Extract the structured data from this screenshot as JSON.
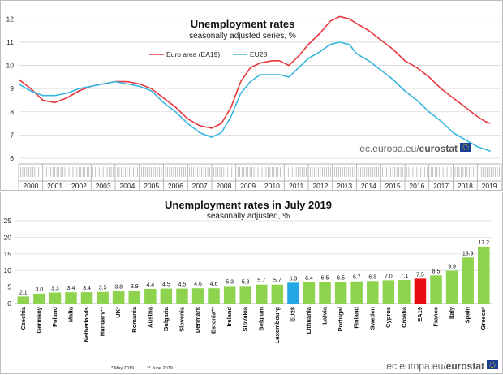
{
  "chart_data": [
    {
      "type": "line",
      "title": "Unemployment rates",
      "subtitle": "seasonally adjusted series, %",
      "x_categories": [
        "2000",
        "2001",
        "2002",
        "2003",
        "2004",
        "2005",
        "2006",
        "2007",
        "2008",
        "2009",
        "2010",
        "2011",
        "2012",
        "2013",
        "2014",
        "2015",
        "2016",
        "2017",
        "2018",
        "2019"
      ],
      "ylim": [
        6,
        12.5
      ],
      "yticks": [
        6,
        7,
        8,
        9,
        10,
        11,
        12
      ],
      "legend_position": "top-center",
      "series": [
        {
          "name": "Euro area (EA19)",
          "color": "#e8353b",
          "points": [
            [
              2000.0,
              9.4
            ],
            [
              2000.5,
              9.0
            ],
            [
              2001.0,
              8.5
            ],
            [
              2001.5,
              8.4
            ],
            [
              2002.0,
              8.6
            ],
            [
              2002.5,
              8.9
            ],
            [
              2003.0,
              9.1
            ],
            [
              2003.5,
              9.2
            ],
            [
              2004.0,
              9.3
            ],
            [
              2004.5,
              9.3
            ],
            [
              2005.0,
              9.2
            ],
            [
              2005.5,
              9.0
            ],
            [
              2006.0,
              8.6
            ],
            [
              2006.5,
              8.2
            ],
            [
              2007.0,
              7.7
            ],
            [
              2007.5,
              7.4
            ],
            [
              2008.0,
              7.3
            ],
            [
              2008.4,
              7.5
            ],
            [
              2008.8,
              8.2
            ],
            [
              2009.2,
              9.3
            ],
            [
              2009.6,
              9.9
            ],
            [
              2010.0,
              10.1
            ],
            [
              2010.5,
              10.2
            ],
            [
              2010.8,
              10.2
            ],
            [
              2011.2,
              10.0
            ],
            [
              2011.6,
              10.4
            ],
            [
              2012.0,
              10.9
            ],
            [
              2012.5,
              11.4
            ],
            [
              2012.9,
              11.9
            ],
            [
              2013.3,
              12.1
            ],
            [
              2013.7,
              12.0
            ],
            [
              2014.0,
              11.8
            ],
            [
              2014.5,
              11.5
            ],
            [
              2015.0,
              11.1
            ],
            [
              2015.5,
              10.7
            ],
            [
              2016.0,
              10.2
            ],
            [
              2016.5,
              9.9
            ],
            [
              2017.0,
              9.5
            ],
            [
              2017.5,
              9.0
            ],
            [
              2018.0,
              8.6
            ],
            [
              2018.5,
              8.2
            ],
            [
              2019.0,
              7.8
            ],
            [
              2019.3,
              7.6
            ],
            [
              2019.55,
              7.5
            ]
          ]
        },
        {
          "name": "EU28",
          "color": "#37b7e0",
          "points": [
            [
              2000.0,
              9.2
            ],
            [
              2000.5,
              8.9
            ],
            [
              2001.0,
              8.7
            ],
            [
              2001.5,
              8.7
            ],
            [
              2002.0,
              8.8
            ],
            [
              2002.5,
              9.0
            ],
            [
              2003.0,
              9.1
            ],
            [
              2003.5,
              9.2
            ],
            [
              2004.0,
              9.3
            ],
            [
              2004.5,
              9.2
            ],
            [
              2005.0,
              9.1
            ],
            [
              2005.5,
              8.9
            ],
            [
              2006.0,
              8.4
            ],
            [
              2006.5,
              8.0
            ],
            [
              2007.0,
              7.5
            ],
            [
              2007.5,
              7.1
            ],
            [
              2008.0,
              6.9
            ],
            [
              2008.4,
              7.1
            ],
            [
              2008.8,
              7.8
            ],
            [
              2009.2,
              8.8
            ],
            [
              2009.6,
              9.3
            ],
            [
              2010.0,
              9.6
            ],
            [
              2010.5,
              9.6
            ],
            [
              2010.8,
              9.6
            ],
            [
              2011.2,
              9.5
            ],
            [
              2011.6,
              9.9
            ],
            [
              2012.0,
              10.3
            ],
            [
              2012.5,
              10.6
            ],
            [
              2012.9,
              10.9
            ],
            [
              2013.3,
              11.0
            ],
            [
              2013.7,
              10.9
            ],
            [
              2014.0,
              10.5
            ],
            [
              2014.5,
              10.2
            ],
            [
              2015.0,
              9.8
            ],
            [
              2015.5,
              9.4
            ],
            [
              2016.0,
              8.9
            ],
            [
              2016.5,
              8.5
            ],
            [
              2017.0,
              8.0
            ],
            [
              2017.5,
              7.6
            ],
            [
              2018.0,
              7.1
            ],
            [
              2018.5,
              6.8
            ],
            [
              2019.0,
              6.5
            ],
            [
              2019.3,
              6.4
            ],
            [
              2019.55,
              6.3
            ]
          ]
        }
      ]
    },
    {
      "type": "bar",
      "title": "Unemployment rates in July 2019",
      "subtitle": "seasonally adjusted, %",
      "ylim": [
        0,
        25
      ],
      "yticks": [
        0,
        5,
        10,
        15,
        20,
        25
      ],
      "categories": [
        "Czechia",
        "Germany",
        "Poland",
        "Malta",
        "Netherlands",
        "Hungary**",
        "UK*",
        "Romania",
        "Austria",
        "Bulgaria",
        "Slovenia",
        "Denmark",
        "Estonia**",
        "Ireland",
        "Slovakia",
        "Belgium",
        "Luxembourg",
        "EU28",
        "Lithuania",
        "Latvia",
        "Portugal",
        "Finland",
        "Sweden",
        "Cyprus",
        "Croatia",
        "EA19",
        "France",
        "Italy",
        "Spain",
        "Greece*"
      ],
      "values": [
        2.1,
        3.0,
        3.3,
        3.4,
        3.4,
        3.5,
        3.8,
        3.9,
        4.4,
        4.5,
        4.5,
        4.6,
        4.6,
        5.3,
        5.3,
        5.7,
        5.7,
        6.3,
        6.4,
        6.5,
        6.5,
        6.7,
        6.8,
        7.0,
        7.1,
        7.5,
        8.5,
        9.9,
        13.9,
        17.2
      ],
      "value_labels": [
        "2.1",
        "3.0",
        "3.3",
        "3.4",
        "3.4",
        "3.5",
        "3.8",
        "3.9",
        "4.4",
        "4.5",
        "4.5",
        "4.6",
        "4.6",
        "5.3",
        "5.3",
        "5.7",
        "5.7",
        "6.3",
        "6.4",
        "6.5",
        "6.5",
        "6.7",
        "6.8",
        "7.0",
        "7.1",
        "7.5",
        "8.5",
        "9.9",
        "13.9",
        "17.2"
      ],
      "bar_colors": {
        "default": "#8ed34e",
        "EU28": "#22a9e3",
        "EA19": "#ea0a14"
      },
      "footnotes": [
        "* May 2019",
        "** June 2019"
      ]
    }
  ],
  "legend": {
    "ea19": "Euro area (EA19)",
    "eu28": "EU28"
  },
  "branding": {
    "domain": "ec.europa.eu/",
    "name": "eurostat"
  },
  "colors": {
    "ea19": "#e8353b",
    "eu28": "#37b7e0",
    "bar": "#8ed34e",
    "eu28_bar": "#22a9e3",
    "ea19_bar": "#ea0a14",
    "logo_blue": "#1b3f94",
    "logo_star": "#ffd200"
  },
  "icons": {
    "logo": "eu-flag-icon"
  }
}
